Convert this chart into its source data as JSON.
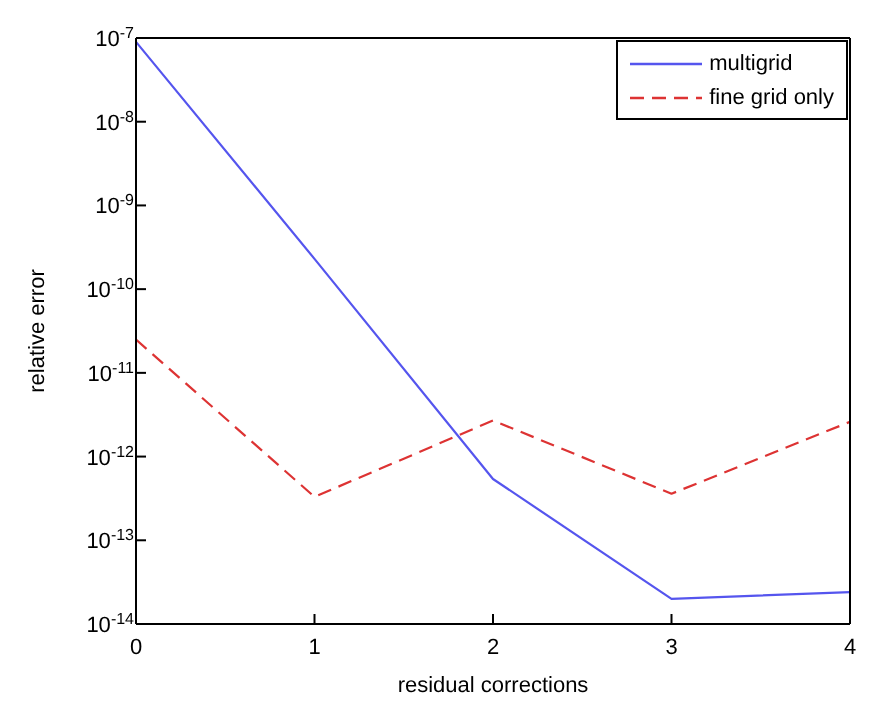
{
  "chart_data": {
    "type": "line",
    "xlabel": "residual corrections",
    "ylabel": "relative error",
    "x": [
      0,
      1,
      2,
      3,
      4
    ],
    "series": [
      {
        "name": "multigrid",
        "color": "#5555ee",
        "line_style": "solid",
        "values": [
          9e-08,
          2.3e-10,
          5.4e-13,
          2e-14,
          2.4e-14
        ]
      },
      {
        "name": "fine grid only",
        "color": "#dd3333",
        "line_style": "dashed",
        "values": [
          2.5e-11,
          3.3e-13,
          2.7e-12,
          3.6e-13,
          2.6e-12
        ]
      }
    ],
    "log": "y",
    "xlim": [
      0,
      4
    ],
    "xticks": [
      0,
      1,
      2,
      3,
      4
    ],
    "ylim": [
      1e-14,
      1e-07
    ],
    "yticks": [
      {
        "value": 1e-14,
        "label": "10$^{-14}$"
      },
      {
        "value": 1e-13,
        "label": "10$^{-13}$"
      },
      {
        "value": 1e-12,
        "label": "10$^{-12}$"
      },
      {
        "value": 1e-11,
        "label": "10$^{-11}$"
      },
      {
        "value": 1e-10,
        "label": "10$^{-10}$"
      },
      {
        "value": 1e-09,
        "label": "10$^{-9}$"
      },
      {
        "value": 1e-08,
        "label": "10$^{-8}$"
      },
      {
        "value": 1e-07,
        "label": "10$^{-7}$"
      }
    ],
    "grid": false,
    "legend": "top right",
    "marker": "none"
  }
}
